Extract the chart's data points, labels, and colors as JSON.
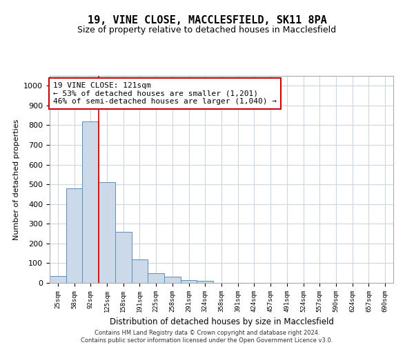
{
  "title": "19, VINE CLOSE, MACCLESFIELD, SK11 8PA",
  "subtitle": "Size of property relative to detached houses in Macclesfield",
  "xlabel": "Distribution of detached houses by size in Macclesfield",
  "ylabel": "Number of detached properties",
  "footer_line1": "Contains HM Land Registry data © Crown copyright and database right 2024.",
  "footer_line2": "Contains public sector information licensed under the Open Government Licence v3.0.",
  "bin_labels": [
    "25sqm",
    "58sqm",
    "92sqm",
    "125sqm",
    "158sqm",
    "191sqm",
    "225sqm",
    "258sqm",
    "291sqm",
    "324sqm",
    "358sqm",
    "391sqm",
    "424sqm",
    "457sqm",
    "491sqm",
    "524sqm",
    "557sqm",
    "590sqm",
    "624sqm",
    "657sqm",
    "690sqm"
  ],
  "bar_values": [
    35,
    480,
    820,
    510,
    260,
    120,
    50,
    30,
    15,
    10,
    0,
    0,
    0,
    0,
    0,
    0,
    0,
    0,
    0,
    0,
    0
  ],
  "bar_color": "#ccd9e8",
  "bar_edge_color": "#5b8db8",
  "grid_color": "#ccd5e0",
  "vline_x": 2.5,
  "vline_color": "#cc0000",
  "annotation_text": "19 VINE CLOSE: 121sqm\n← 53% of detached houses are smaller (1,201)\n46% of semi-detached houses are larger (1,040) →",
  "annotation_box_color": "#ffffff",
  "annotation_box_edge": "#cc0000",
  "ylim": [
    0,
    1050
  ],
  "yticks": [
    0,
    100,
    200,
    300,
    400,
    500,
    600,
    700,
    800,
    900,
    1000
  ],
  "background_color": "#ffffff",
  "title_fontsize": 11,
  "subtitle_fontsize": 9
}
